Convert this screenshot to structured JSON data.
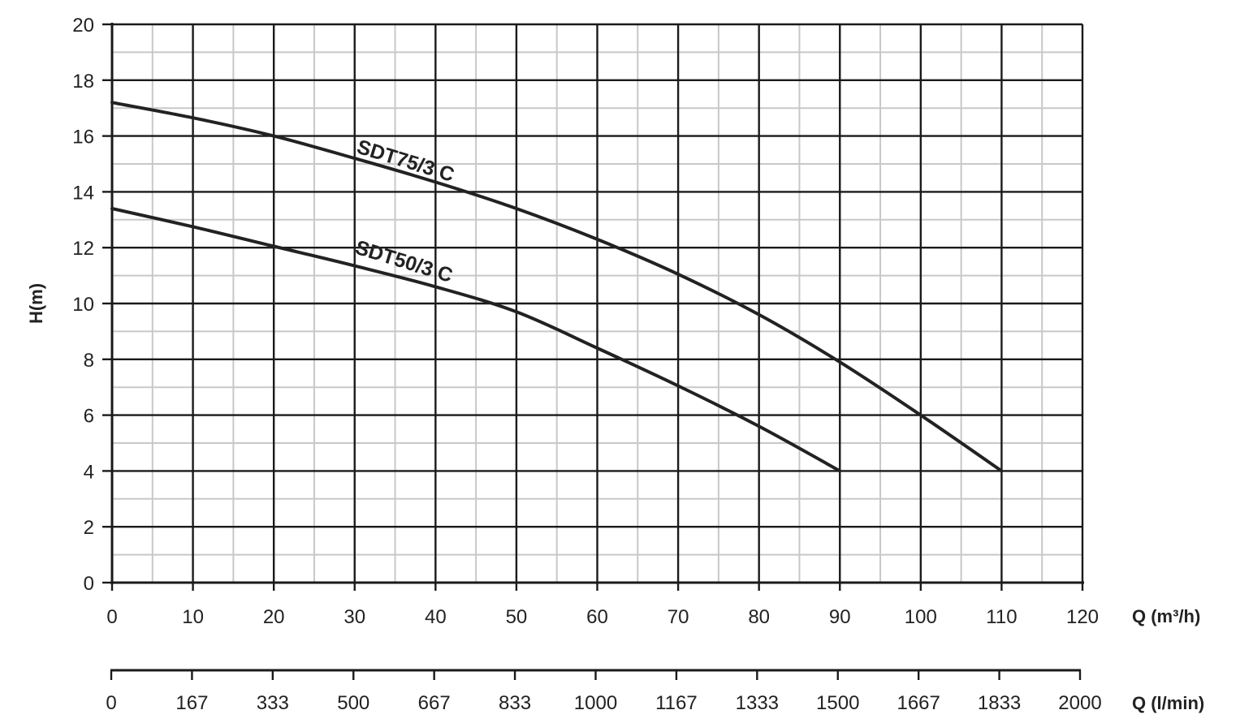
{
  "chart_data": {
    "type": "line",
    "ylabel": "H(m)",
    "xlabel": "Q (m³/h)",
    "x2label": "Q  (l/min)",
    "xlim": [
      0,
      120
    ],
    "ylim": [
      0,
      20
    ],
    "x_ticks": [
      "0",
      "10",
      "20",
      "30",
      "40",
      "50",
      "60",
      "70",
      "80",
      "90",
      "100",
      "110",
      "120"
    ],
    "x2_ticks": [
      "0",
      "167",
      "333",
      "500",
      "667",
      "833",
      "1000",
      "1167",
      "1333",
      "1500",
      "1667",
      "1833",
      "2000"
    ],
    "y_ticks": [
      "0",
      "2",
      "4",
      "6",
      "8",
      "10",
      "12",
      "14",
      "16",
      "18",
      "20"
    ],
    "grid": true,
    "series": [
      {
        "name": "SDT75/3 C",
        "x": [
          0,
          10,
          20,
          30,
          40,
          50,
          60,
          70,
          80,
          90,
          100,
          110
        ],
        "y": [
          17.2,
          16.65,
          16.0,
          15.2,
          14.35,
          13.4,
          12.3,
          11.05,
          9.6,
          7.9,
          6.0,
          4.0
        ]
      },
      {
        "name": "SDT50/3 C",
        "x": [
          0,
          10,
          20,
          30,
          40,
          50,
          60,
          70,
          80,
          90
        ],
        "y": [
          13.4,
          12.75,
          12.05,
          11.35,
          10.6,
          9.7,
          8.4,
          7.05,
          5.6,
          4.0
        ]
      }
    ],
    "colors": {
      "line": "#222222",
      "major_grid": "#1a1a1a",
      "minor_grid": "#c8c8c8"
    }
  }
}
